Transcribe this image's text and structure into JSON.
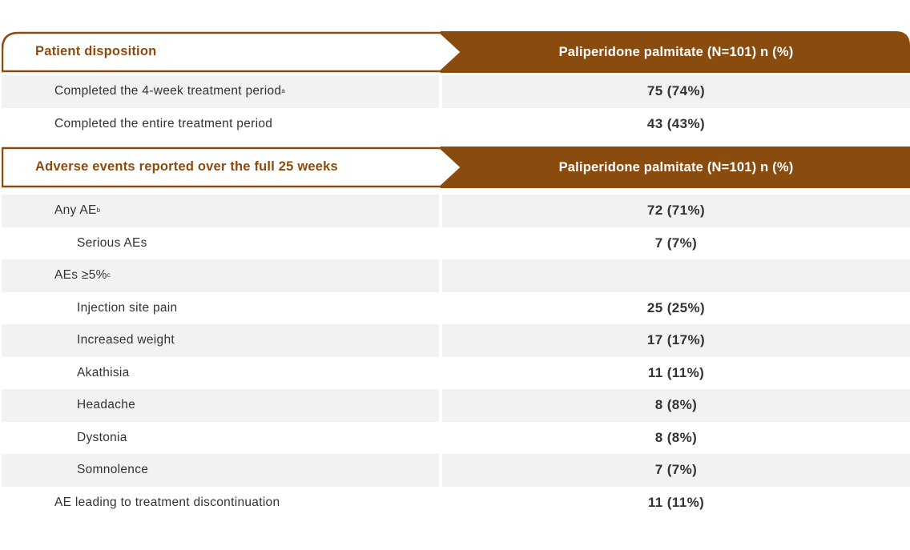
{
  "section1": {
    "left_header": "Patient disposition",
    "right_header": "Paliperidone palmitate (N=101) n (%)",
    "rows": [
      {
        "label": "Completed the 4-week treatment period",
        "sup": "a",
        "value": "75 (74%)"
      },
      {
        "label": "Completed the entire treatment period",
        "sup": "",
        "value": "43 (43%)"
      }
    ]
  },
  "section2": {
    "left_header": "Adverse events reported over the full 25 weeks",
    "right_header": "Paliperidone palmitate (N=101) n (%)",
    "rows": [
      {
        "label": "Any AE",
        "sup": "b",
        "value": "72 (71%)"
      },
      {
        "label": "Serious AEs",
        "sup": "",
        "value": "7 (7%)"
      },
      {
        "label": "AEs ≥5%",
        "sup": "c",
        "value": ""
      },
      {
        "label": "Injection site pain",
        "sup": "",
        "value": "25 (25%)"
      },
      {
        "label": "Increased weight",
        "sup": "",
        "value": "17 (17%)"
      },
      {
        "label": "Akathisia",
        "sup": "",
        "value": "11 (11%)"
      },
      {
        "label": "Headache",
        "sup": "",
        "value": "8 (8%)"
      },
      {
        "label": "Dystonia",
        "sup": "",
        "value": "8 (8%)"
      },
      {
        "label": "Somnolence",
        "sup": "",
        "value": "7 (7%)"
      },
      {
        "label": "AE leading to treatment discontinuation",
        "sup": "",
        "value": "11 (11%)"
      }
    ]
  },
  "colors": {
    "brand": "#8a4b0f",
    "shade": "#f2f2f2"
  }
}
